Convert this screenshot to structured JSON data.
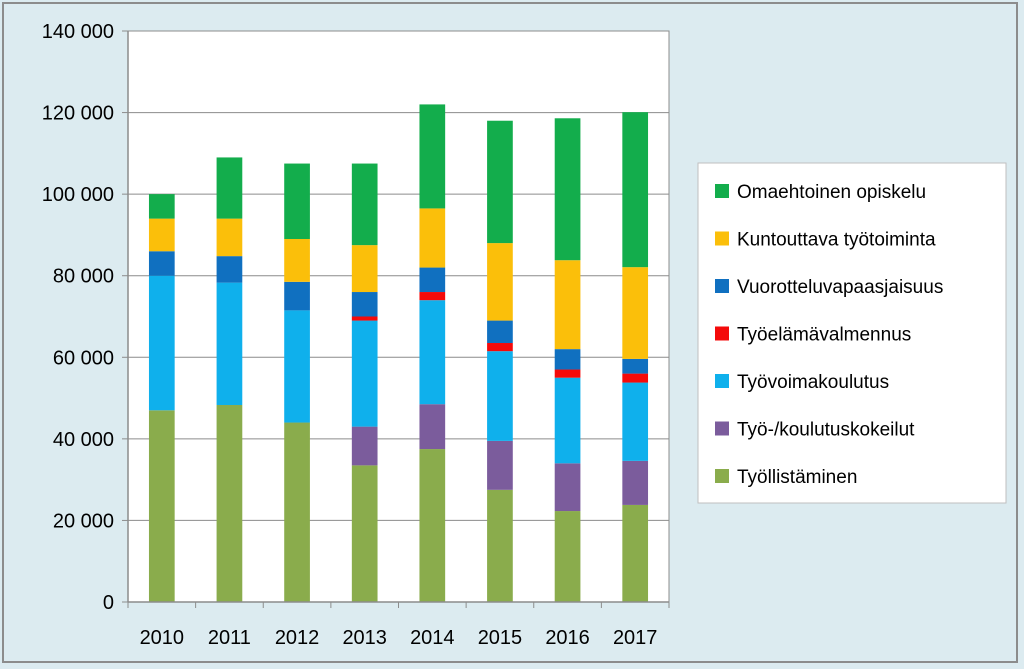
{
  "chart_data": {
    "type": "bar",
    "stacked": true,
    "categories": [
      "2010",
      "2011",
      "2012",
      "2013",
      "2014",
      "2015",
      "2016",
      "2017"
    ],
    "ylim": [
      0,
      140000
    ],
    "ytick_values": [
      0,
      20000,
      40000,
      60000,
      80000,
      100000,
      120000,
      140000
    ],
    "ytick_labels": [
      "0",
      "20 000",
      "40 000",
      "60 000",
      "80 000",
      "100 000",
      "120 000",
      "140 000"
    ],
    "legend_position": "right",
    "series": [
      {
        "name": "Työllistäminen",
        "color": "#8aac4c",
        "values": [
          47000,
          48300,
          44000,
          33500,
          37500,
          27500,
          22300,
          23800
        ]
      },
      {
        "name": "Työ-/koulutuskokeilut",
        "color": "#7b5c9c",
        "values": [
          0,
          0,
          0,
          9500,
          11000,
          12000,
          11700,
          10800
        ]
      },
      {
        "name": "Työvoimakoulutus",
        "color": "#0fb0ec",
        "values": [
          33000,
          30000,
          27500,
          26000,
          25500,
          22000,
          21000,
          19200
        ]
      },
      {
        "name": "Työelämävalmennus",
        "color": "#f40a0a",
        "values": [
          0,
          0,
          0,
          1000,
          2000,
          2000,
          2000,
          2200
        ]
      },
      {
        "name": "Vuorotteluvapaasjaisuus",
        "color": "#1070c0",
        "values": [
          6000,
          6500,
          7000,
          6000,
          6000,
          5500,
          5000,
          3600
        ]
      },
      {
        "name": "Kuntouttava työtoiminta",
        "color": "#fbbf0a",
        "values": [
          8000,
          9200,
          10500,
          11500,
          14500,
          19000,
          21800,
          22500
        ]
      },
      {
        "name": "Omaehtoinen opiskelu",
        "color": "#13ad4c",
        "values": [
          6000,
          15000,
          18500,
          20000,
          25500,
          30000,
          34800,
          38000
        ]
      }
    ]
  }
}
